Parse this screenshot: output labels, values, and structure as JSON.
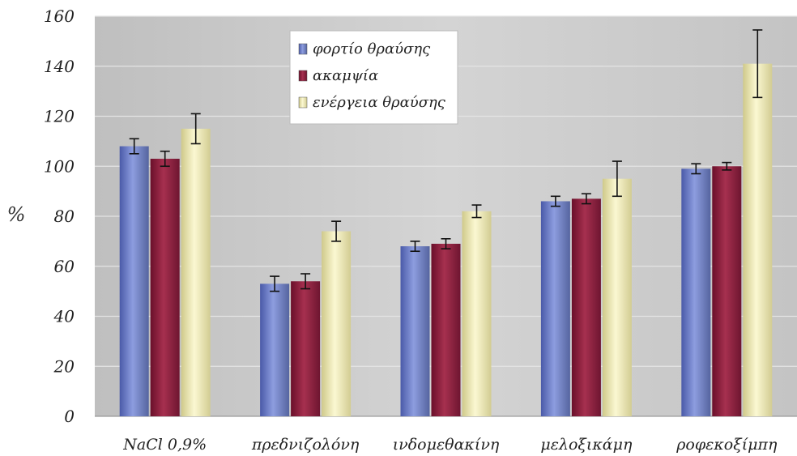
{
  "chart_data": {
    "type": "bar",
    "title": "",
    "xlabel": "",
    "ylabel": "%",
    "ylim": [
      0,
      160
    ],
    "yticks": [
      0,
      20,
      40,
      60,
      80,
      100,
      120,
      140,
      160
    ],
    "grid": true,
    "legend_position": "top-center",
    "categories": [
      "NaCl 0,9%",
      "πρεδνιζολόνη",
      "ινδομεθακίνη",
      "μελοξικάμη",
      "ροφεκοξίμπη"
    ],
    "series": [
      {
        "name": "φορτίο θραύσης",
        "color": "#6e7fc4",
        "values": [
          108,
          53,
          68,
          86,
          99
        ],
        "errors": [
          3,
          3,
          2,
          2,
          2
        ]
      },
      {
        "name": "ακαμψία",
        "color": "#8a1f3c",
        "values": [
          103,
          54,
          69,
          87,
          100
        ],
        "errors": [
          3,
          3,
          2,
          2,
          1.5
        ]
      },
      {
        "name": "ενέργεια θραύσης",
        "color": "#e6e2a8",
        "values": [
          115,
          74,
          82,
          95,
          141
        ],
        "errors": [
          6,
          4,
          2.5,
          7,
          13.5
        ]
      }
    ],
    "background_color": "#c8c8c8"
  }
}
